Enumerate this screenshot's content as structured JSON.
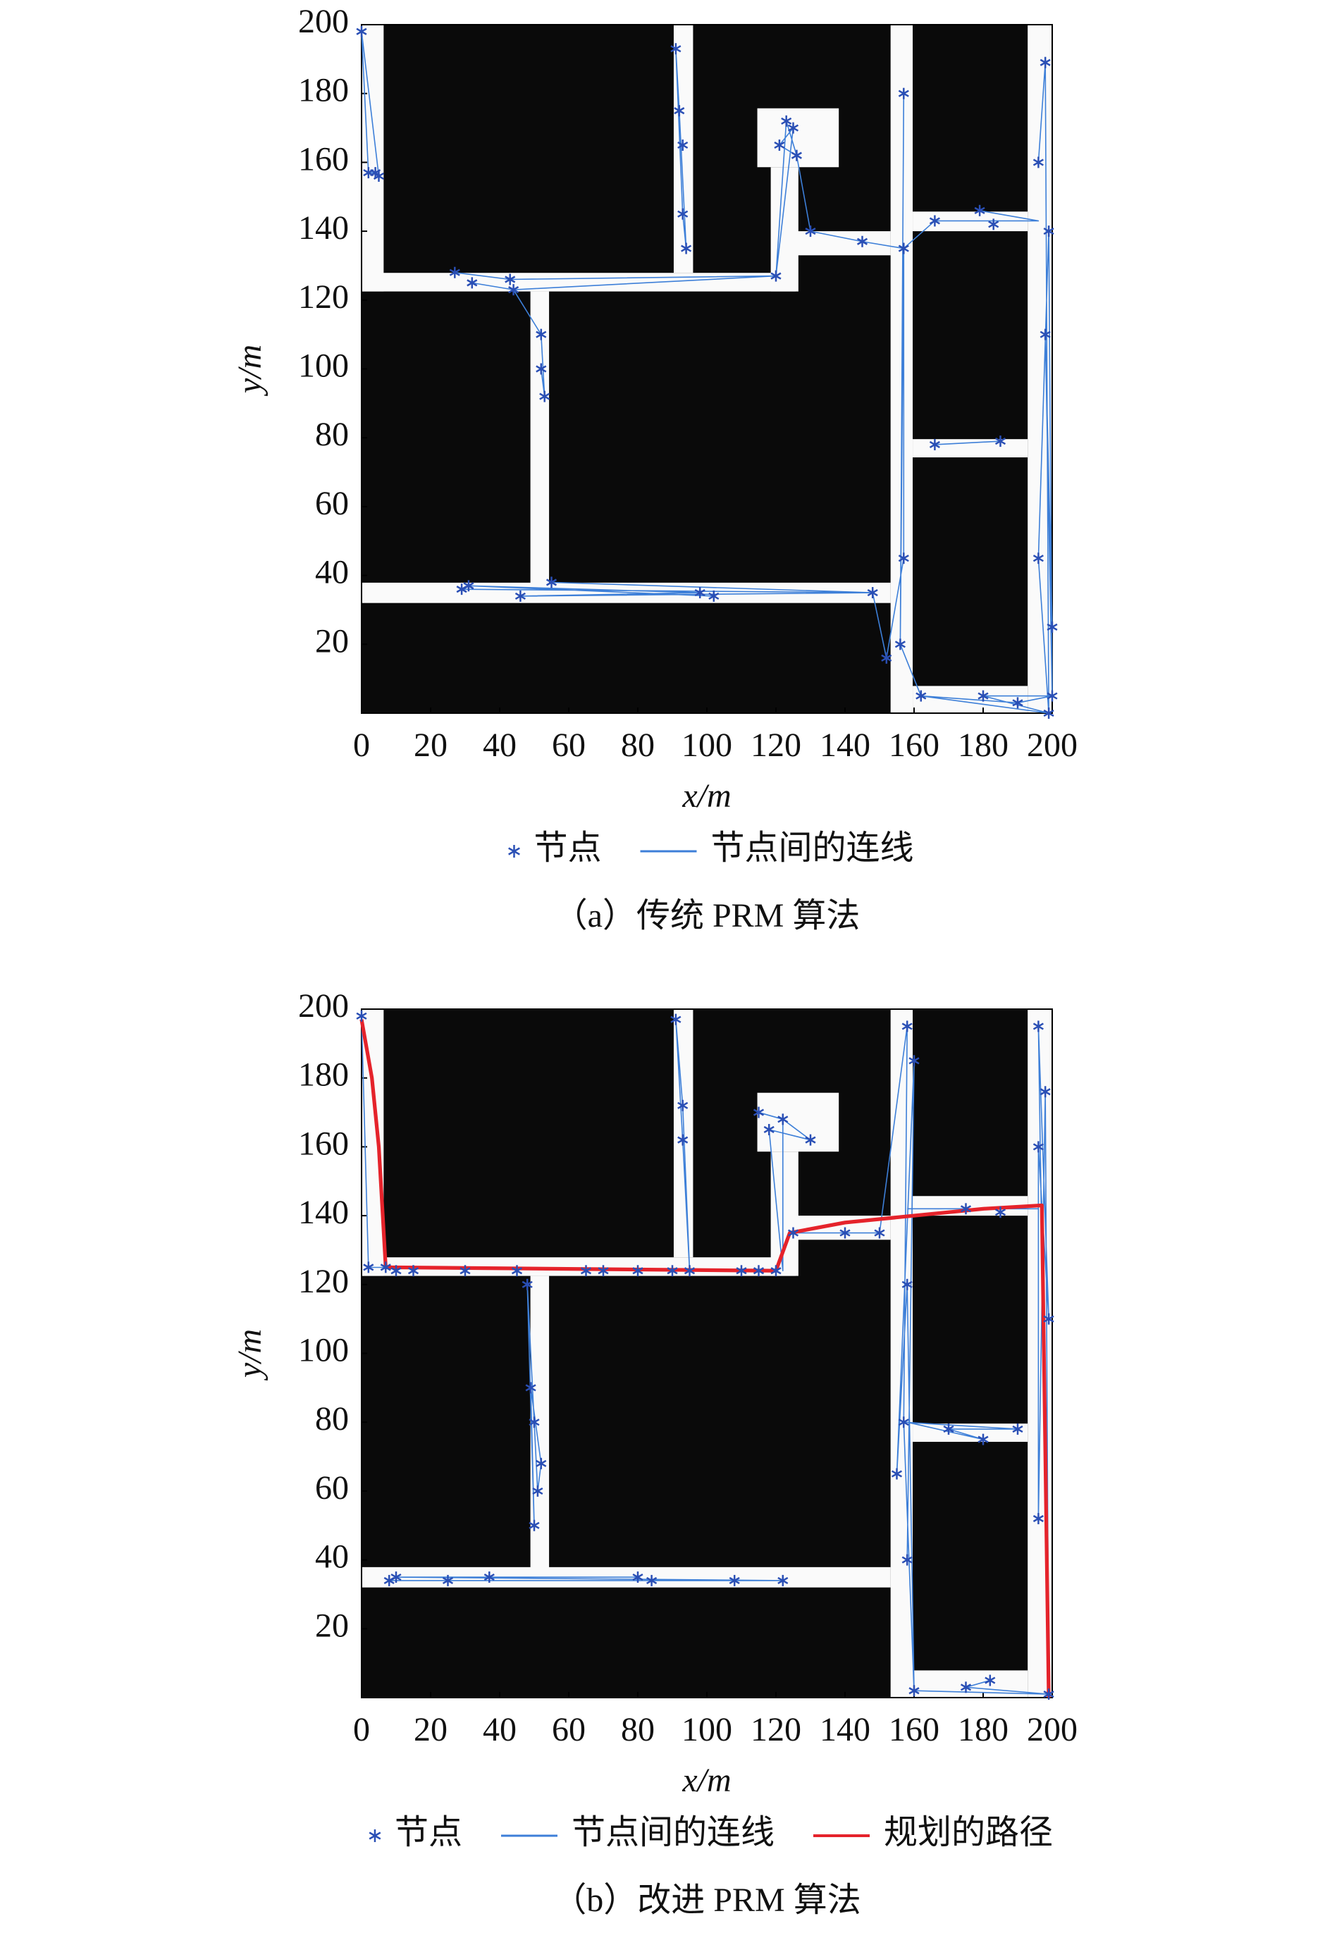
{
  "chart_data": [
    {
      "type": "prm",
      "caption": "（a）传统 PRM 算法",
      "x_label": "x/m",
      "y_label": "y/m",
      "xlim": [
        0,
        200
      ],
      "ylim": [
        0,
        200
      ],
      "xticks": [
        0,
        20,
        40,
        60,
        80,
        100,
        120,
        140,
        160,
        180,
        200
      ],
      "yticks": [
        20,
        40,
        60,
        80,
        100,
        120,
        140,
        160,
        180,
        200
      ],
      "series": [
        {
          "name": "节点",
          "mode": "markers",
          "color": "#2a4fb5",
          "x": [
            0,
            2,
            4,
            5,
            27,
            32,
            43,
            44,
            52,
            52,
            53,
            91,
            92,
            93,
            93,
            94,
            120,
            121,
            123,
            125,
            126,
            130,
            145,
            157,
            157,
            156,
            157,
            166,
            179,
            183,
            166,
            185,
            196,
            198,
            199,
            198,
            196,
            200,
            200,
            199,
            190,
            180,
            162,
            29,
            31,
            46,
            55,
            98,
            102,
            148,
            152
          ],
          "y": [
            198,
            157,
            157,
            156,
            128,
            125,
            126,
            123,
            110,
            100,
            92,
            193,
            175,
            165,
            145,
            135,
            127,
            165,
            172,
            170,
            162,
            140,
            137,
            180,
            135,
            20,
            45,
            143,
            146,
            142,
            78,
            79,
            160,
            189,
            140,
            110,
            45,
            25,
            5,
            0,
            3,
            5,
            5,
            36,
            37,
            34,
            38,
            35,
            34,
            35,
            16
          ]
        },
        {
          "name": "节点间的连线",
          "mode": "lines",
          "color": "#3d7fd8",
          "x": [
            0,
            2,
            4,
            null,
            5,
            0,
            null,
            27,
            43,
            120,
            44,
            32,
            null,
            44,
            52,
            53,
            52,
            null,
            91,
            93,
            94,
            92,
            91,
            null,
            120,
            123,
            126,
            121,
            125,
            120,
            null,
            126,
            130,
            145,
            157,
            166,
            196,
            179,
            null,
            157,
            156,
            157,
            157,
            152,
            null,
            166,
            185,
            null,
            196,
            198,
            199,
            196,
            199,
            200,
            198,
            200,
            null,
            162,
            199,
            180,
            200,
            190,
            162,
            null,
            29,
            148,
            46,
            98,
            31,
            102,
            null,
            55,
            148,
            152,
            null,
            156,
            162
          ],
          "y": [
            198,
            157,
            157,
            null,
            156,
            198,
            null,
            128,
            126,
            127,
            123,
            125,
            null,
            123,
            110,
            92,
            100,
            null,
            193,
            145,
            135,
            175,
            193,
            null,
            127,
            172,
            162,
            165,
            170,
            127,
            null,
            162,
            140,
            137,
            135,
            143,
            143,
            146,
            null,
            180,
            20,
            135,
            45,
            16,
            null,
            78,
            79,
            null,
            160,
            189,
            0,
            45,
            140,
            5,
            110,
            25,
            null,
            5,
            0,
            5,
            5,
            3,
            5,
            null,
            36,
            35,
            34,
            35,
            37,
            34,
            null,
            38,
            35,
            16,
            null,
            20,
            5
          ]
        }
      ]
    },
    {
      "type": "prm",
      "caption": "（b）改进 PRM 算法",
      "x_label": "x/m",
      "y_label": "y/m",
      "xlim": [
        0,
        200
      ],
      "ylim": [
        0,
        200
      ],
      "xticks": [
        0,
        20,
        40,
        60,
        80,
        100,
        120,
        140,
        160,
        180,
        200
      ],
      "yticks": [
        20,
        40,
        60,
        80,
        100,
        120,
        140,
        160,
        180,
        200
      ],
      "series": [
        {
          "name": "节点",
          "mode": "markers",
          "color": "#2a4fb5",
          "x": [
            0,
            2,
            7,
            10,
            15,
            30,
            45,
            65,
            70,
            80,
            90,
            95,
            110,
            115,
            120,
            91,
            93,
            93,
            115,
            118,
            122,
            130,
            125,
            140,
            150,
            158,
            160,
            158,
            157,
            155,
            158,
            160,
            175,
            182,
            170,
            180,
            190,
            175,
            185,
            196,
            198,
            196,
            199,
            196,
            199,
            48,
            49,
            50,
            51,
            50,
            52,
            8,
            10,
            25,
            37,
            80,
            84,
            108,
            122
          ],
          "y": [
            198,
            125,
            125,
            124,
            124,
            124,
            124,
            124,
            124,
            124,
            124,
            124,
            124,
            124,
            124,
            197,
            172,
            162,
            170,
            165,
            168,
            162,
            135,
            135,
            135,
            195,
            185,
            120,
            80,
            65,
            40,
            2,
            3,
            5,
            78,
            75,
            78,
            142,
            141,
            195,
            176,
            160,
            110,
            52,
            1,
            120,
            90,
            80,
            60,
            50,
            68,
            34,
            35,
            34,
            35,
            35,
            34,
            34,
            34
          ]
        },
        {
          "name": "节点间的连线",
          "mode": "lines",
          "color": "#3d7fd8",
          "x": [
            0,
            2,
            120,
            7,
            null,
            48,
            50,
            49,
            52,
            51,
            50,
            48,
            null,
            91,
            93,
            95,
            93,
            91,
            null,
            115,
            122,
            130,
            118,
            122,
            122,
            null,
            125,
            150,
            158,
            157,
            160,
            158,
            155,
            160,
            158,
            null,
            157,
            190,
            170,
            180,
            158,
            null,
            160,
            199,
            175,
            182,
            null,
            196,
            199,
            198,
            196,
            196,
            199,
            196,
            null,
            8,
            122,
            10,
            80,
            null,
            158,
            196,
            175
          ],
          "y": [
            198,
            125,
            124,
            125,
            null,
            120,
            50,
            90,
            68,
            60,
            80,
            120,
            null,
            197,
            162,
            124,
            172,
            197,
            null,
            170,
            168,
            162,
            165,
            124,
            168,
            null,
            135,
            135,
            195,
            80,
            2,
            120,
            65,
            185,
            40,
            null,
            80,
            78,
            78,
            75,
            80,
            null,
            2,
            1,
            3,
            5,
            null,
            195,
            1,
            176,
            52,
            160,
            110,
            195,
            null,
            34,
            34,
            35,
            35,
            null,
            142,
            142,
            142
          ]
        },
        {
          "name": "规划的路径",
          "mode": "lines",
          "color": "#e5232b",
          "width": 3,
          "x": [
            0,
            3,
            5,
            7,
            120,
            124,
            140,
            180,
            197,
            199
          ],
          "y": [
            197,
            180,
            160,
            125,
            124,
            135,
            138,
            142,
            143,
            0
          ]
        }
      ]
    }
  ]
}
